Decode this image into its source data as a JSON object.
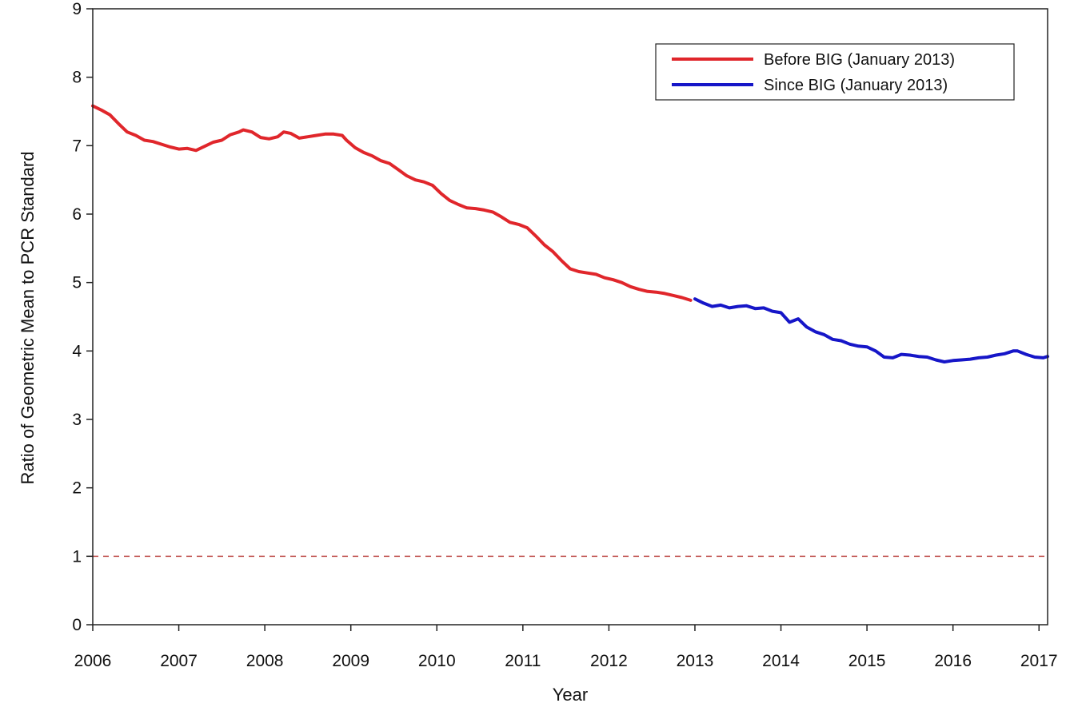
{
  "chart_data": {
    "type": "line",
    "title": "",
    "xlabel": "Year",
    "ylabel": "Ratio of Geometric Mean to PCR Standard",
    "xlim": [
      2006,
      2017.1
    ],
    "ylim": [
      0,
      9
    ],
    "x_ticks": [
      "2006",
      "2007",
      "2008",
      "2009",
      "2010",
      "2011",
      "2012",
      "2013",
      "2014",
      "2015",
      "2016",
      "2017"
    ],
    "y_ticks": [
      "0",
      "1",
      "2",
      "3",
      "4",
      "5",
      "6",
      "7",
      "8",
      "9"
    ],
    "grid": false,
    "legend": {
      "position": "top-right",
      "entries": [
        {
          "label": "Before BIG (January 2013)",
          "color": "#e0262b"
        },
        {
          "label": "Since BIG (January 2013)",
          "color": "#1616c8"
        }
      ]
    },
    "reference_line": {
      "y": 1,
      "style": "dashed",
      "color": "#c0504d"
    },
    "series": [
      {
        "name": "Before BIG (January 2013)",
        "color": "#e0262b",
        "points": [
          [
            2006.0,
            7.58
          ],
          [
            2006.1,
            7.52
          ],
          [
            2006.2,
            7.45
          ],
          [
            2006.3,
            7.32
          ],
          [
            2006.4,
            7.2
          ],
          [
            2006.5,
            7.15
          ],
          [
            2006.6,
            7.08
          ],
          [
            2006.7,
            7.06
          ],
          [
            2006.8,
            7.02
          ],
          [
            2006.9,
            6.98
          ],
          [
            2007.0,
            6.95
          ],
          [
            2007.1,
            6.96
          ],
          [
            2007.2,
            6.93
          ],
          [
            2007.3,
            6.99
          ],
          [
            2007.4,
            7.05
          ],
          [
            2007.5,
            7.08
          ],
          [
            2007.6,
            7.16
          ],
          [
            2007.7,
            7.2
          ],
          [
            2007.75,
            7.23
          ],
          [
            2007.85,
            7.2
          ],
          [
            2007.95,
            7.12
          ],
          [
            2008.05,
            7.1
          ],
          [
            2008.15,
            7.13
          ],
          [
            2008.22,
            7.2
          ],
          [
            2008.3,
            7.18
          ],
          [
            2008.4,
            7.11
          ],
          [
            2008.5,
            7.13
          ],
          [
            2008.6,
            7.15
          ],
          [
            2008.7,
            7.17
          ],
          [
            2008.8,
            7.17
          ],
          [
            2008.9,
            7.15
          ],
          [
            2008.95,
            7.08
          ],
          [
            2009.05,
            6.97
          ],
          [
            2009.15,
            6.9
          ],
          [
            2009.25,
            6.85
          ],
          [
            2009.35,
            6.78
          ],
          [
            2009.45,
            6.74
          ],
          [
            2009.55,
            6.65
          ],
          [
            2009.65,
            6.56
          ],
          [
            2009.75,
            6.5
          ],
          [
            2009.85,
            6.47
          ],
          [
            2009.95,
            6.42
          ],
          [
            2010.05,
            6.3
          ],
          [
            2010.15,
            6.2
          ],
          [
            2010.25,
            6.14
          ],
          [
            2010.35,
            6.09
          ],
          [
            2010.45,
            6.08
          ],
          [
            2010.55,
            6.06
          ],
          [
            2010.65,
            6.03
          ],
          [
            2010.75,
            5.96
          ],
          [
            2010.85,
            5.88
          ],
          [
            2010.95,
            5.85
          ],
          [
            2011.05,
            5.8
          ],
          [
            2011.15,
            5.68
          ],
          [
            2011.25,
            5.55
          ],
          [
            2011.35,
            5.45
          ],
          [
            2011.45,
            5.32
          ],
          [
            2011.55,
            5.2
          ],
          [
            2011.65,
            5.16
          ],
          [
            2011.75,
            5.14
          ],
          [
            2011.85,
            5.12
          ],
          [
            2011.95,
            5.07
          ],
          [
            2012.05,
            5.04
          ],
          [
            2012.15,
            5.0
          ],
          [
            2012.25,
            4.94
          ],
          [
            2012.35,
            4.9
          ],
          [
            2012.45,
            4.87
          ],
          [
            2012.55,
            4.86
          ],
          [
            2012.65,
            4.84
          ],
          [
            2012.75,
            4.81
          ],
          [
            2012.85,
            4.78
          ],
          [
            2012.95,
            4.74
          ]
        ]
      },
      {
        "name": "Since BIG (January 2013)",
        "color": "#1616c8",
        "points": [
          [
            2013.0,
            4.76
          ],
          [
            2013.1,
            4.7
          ],
          [
            2013.2,
            4.65
          ],
          [
            2013.3,
            4.67
          ],
          [
            2013.4,
            4.63
          ],
          [
            2013.5,
            4.65
          ],
          [
            2013.6,
            4.66
          ],
          [
            2013.7,
            4.62
          ],
          [
            2013.8,
            4.63
          ],
          [
            2013.9,
            4.58
          ],
          [
            2014.0,
            4.56
          ],
          [
            2014.1,
            4.42
          ],
          [
            2014.2,
            4.47
          ],
          [
            2014.3,
            4.35
          ],
          [
            2014.4,
            4.28
          ],
          [
            2014.5,
            4.24
          ],
          [
            2014.6,
            4.17
          ],
          [
            2014.7,
            4.15
          ],
          [
            2014.8,
            4.1
          ],
          [
            2014.9,
            4.07
          ],
          [
            2015.0,
            4.06
          ],
          [
            2015.1,
            4.0
          ],
          [
            2015.2,
            3.91
          ],
          [
            2015.3,
            3.9
          ],
          [
            2015.4,
            3.95
          ],
          [
            2015.5,
            3.94
          ],
          [
            2015.6,
            3.92
          ],
          [
            2015.7,
            3.91
          ],
          [
            2015.8,
            3.87
          ],
          [
            2015.9,
            3.84
          ],
          [
            2016.0,
            3.86
          ],
          [
            2016.1,
            3.87
          ],
          [
            2016.2,
            3.88
          ],
          [
            2016.3,
            3.9
          ],
          [
            2016.4,
            3.91
          ],
          [
            2016.5,
            3.94
          ],
          [
            2016.6,
            3.96
          ],
          [
            2016.7,
            4.0
          ],
          [
            2016.75,
            4.0
          ],
          [
            2016.85,
            3.95
          ],
          [
            2016.95,
            3.91
          ],
          [
            2017.05,
            3.9
          ],
          [
            2017.1,
            3.92
          ]
        ]
      }
    ]
  }
}
